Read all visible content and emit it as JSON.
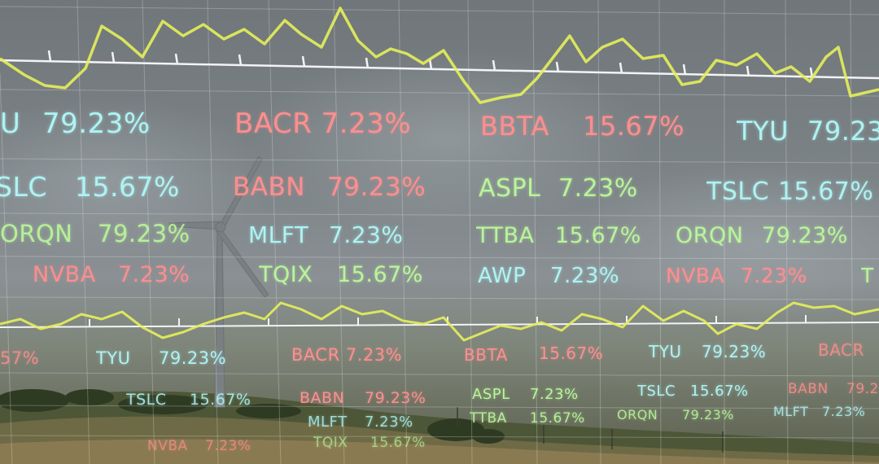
{
  "colors": {
    "cyan": "#aef3f3",
    "red": "#ff8f8f",
    "green": "#b9f59a",
    "line": "#e5ef5a",
    "grid": "#e8eef0"
  },
  "tickers": [
    {
      "text": "U",
      "color": "cyan"
    },
    {
      "text": "79.23%",
      "color": "cyan"
    },
    {
      "text": "BACR 7.23%",
      "color": "red"
    },
    {
      "text": "BBTA",
      "color": "red"
    },
    {
      "text": "15.67%",
      "color": "red"
    },
    {
      "text": "TYU",
      "color": "cyan"
    },
    {
      "text": "79.23",
      "color": "cyan"
    },
    {
      "text": "SLC",
      "color": "cyan"
    },
    {
      "text": "15.67%",
      "color": "cyan"
    },
    {
      "text": "BABN",
      "color": "red"
    },
    {
      "text": "79.23%",
      "color": "red"
    },
    {
      "text": "ASPL",
      "color": "green"
    },
    {
      "text": "7.23%",
      "color": "green"
    },
    {
      "text": "TSLC",
      "color": "cyan"
    },
    {
      "text": "15.67%",
      "color": "cyan"
    },
    {
      "text": "ORQN",
      "color": "green"
    },
    {
      "text": "79.23%",
      "color": "green"
    },
    {
      "text": "MLFT",
      "color": "cyan"
    },
    {
      "text": "7.23%",
      "color": "cyan"
    },
    {
      "text": "TTBA",
      "color": "green"
    },
    {
      "text": "15.67%",
      "color": "green"
    },
    {
      "text": "ORQN",
      "color": "green"
    },
    {
      "text": "79.23%",
      "color": "green"
    },
    {
      "text": "NVBA",
      "color": "red"
    },
    {
      "text": "7.23%",
      "color": "red"
    },
    {
      "text": "TQIX",
      "color": "green"
    },
    {
      "text": "15.67%",
      "color": "green"
    },
    {
      "text": "AWP",
      "color": "cyan"
    },
    {
      "text": "7.23%",
      "color": "cyan"
    },
    {
      "text": "NVBA",
      "color": "red"
    },
    {
      "text": "7.23%",
      "color": "red"
    },
    {
      "text": "T",
      "color": "green"
    },
    {
      "text": "57%",
      "color": "red"
    },
    {
      "text": "TYU",
      "color": "cyan"
    },
    {
      "text": "79.23%",
      "color": "cyan"
    },
    {
      "text": "BACR 7.23%",
      "color": "red"
    },
    {
      "text": "BBTA",
      "color": "red"
    },
    {
      "text": "15.67%",
      "color": "red"
    },
    {
      "text": "TYU",
      "color": "cyan"
    },
    {
      "text": "79.23%",
      "color": "cyan"
    },
    {
      "text": "BACR",
      "color": "red"
    },
    {
      "text": "TSLC",
      "color": "cyan"
    },
    {
      "text": "15.67%",
      "color": "cyan"
    },
    {
      "text": "BABN",
      "color": "red"
    },
    {
      "text": "79.23%",
      "color": "red"
    },
    {
      "text": "ASPL",
      "color": "green"
    },
    {
      "text": "7.23%",
      "color": "green"
    },
    {
      "text": "TSLC",
      "color": "cyan"
    },
    {
      "text": "15.67%",
      "color": "cyan"
    },
    {
      "text": "BABN",
      "color": "red"
    },
    {
      "text": "79.2",
      "color": "red"
    },
    {
      "text": "MLFT",
      "color": "cyan"
    },
    {
      "text": "7.23%",
      "color": "cyan"
    },
    {
      "text": "TTBA",
      "color": "green"
    },
    {
      "text": "15.67%",
      "color": "green"
    },
    {
      "text": "ORQN",
      "color": "green"
    },
    {
      "text": "79.23%",
      "color": "green"
    },
    {
      "text": "MLFT",
      "color": "cyan"
    },
    {
      "text": "7.23%",
      "color": "cyan"
    },
    {
      "text": "NVBA",
      "color": "red"
    },
    {
      "text": "7.23%",
      "color": "red"
    },
    {
      "text": "TQIX",
      "color": "green"
    },
    {
      "text": "15.67%",
      "color": "green"
    }
  ]
}
